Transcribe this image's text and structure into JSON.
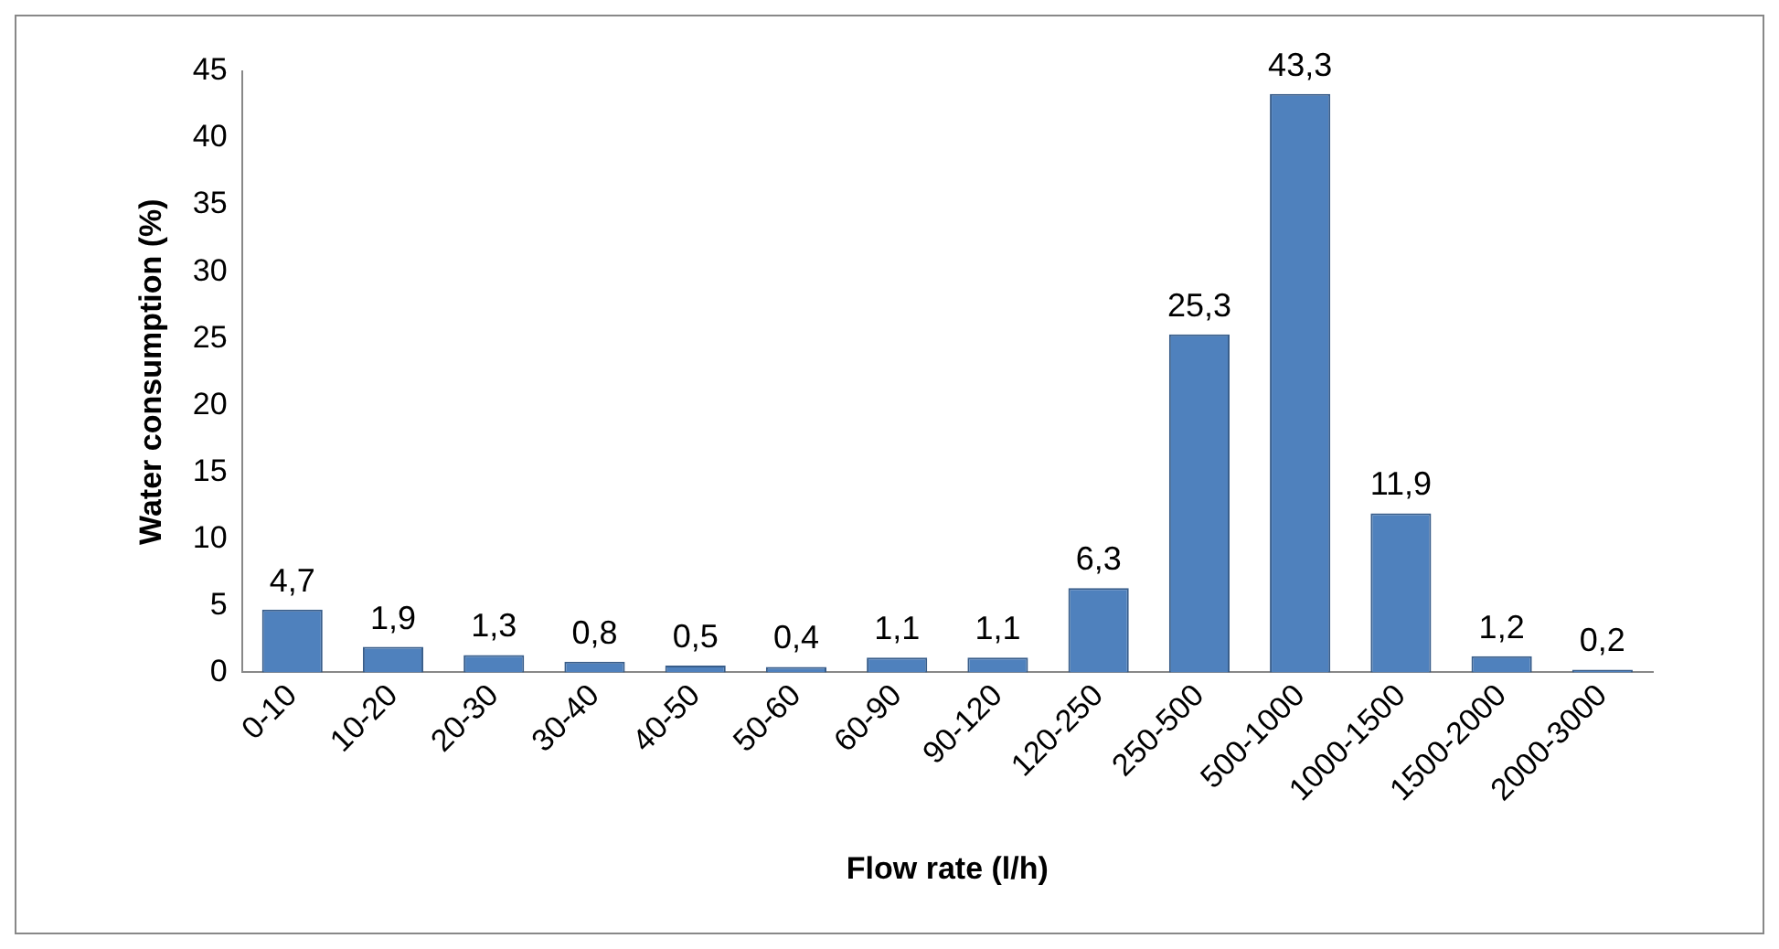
{
  "chart_data": {
    "type": "bar",
    "xlabel": "Flow rate (l/h)",
    "ylabel": "Water consumption (%)",
    "categories": [
      "0-10",
      "10-20",
      "20-30",
      "30-40",
      "40-50",
      "50-60",
      "60-90",
      "90-120",
      "120-250",
      "250-500",
      "500-1000",
      "1000-1500",
      "1500-2000",
      "2000-3000"
    ],
    "values": [
      4.7,
      1.9,
      1.3,
      0.8,
      0.5,
      0.4,
      1.1,
      1.1,
      6.3,
      25.3,
      43.3,
      11.9,
      1.2,
      0.2
    ],
    "value_labels": [
      "4,7",
      "1,9",
      "1,3",
      "0,8",
      "0,5",
      "0,4",
      "1,1",
      "1,1",
      "6,3",
      "25,3",
      "43,3",
      "11,9",
      "1,2",
      "0,2"
    ],
    "color": "#4f81bd",
    "ylim": [
      0,
      45
    ],
    "yticks": [
      0,
      5,
      10,
      15,
      20,
      25,
      30,
      35,
      40,
      45
    ],
    "grid": false,
    "legend": false
  }
}
